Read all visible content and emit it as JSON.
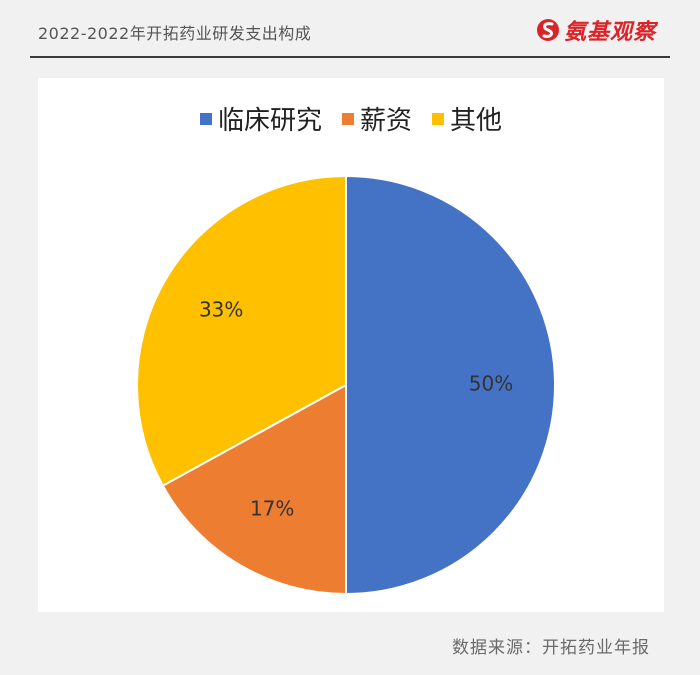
{
  "header": {
    "title": "2022-2022年开拓药业研发支出构成",
    "brand": "氨基观察"
  },
  "source": "数据来源：开拓药业年报",
  "colors": {
    "clinical": "#4472c4",
    "salary": "#ed7d31",
    "other": "#ffc000",
    "brand_red": "#d9252a"
  },
  "chart_data": {
    "type": "pie",
    "title": "",
    "categories": [
      "临床研究",
      "薪资",
      "其他"
    ],
    "values": [
      50,
      17,
      33
    ],
    "data_labels": [
      "50%",
      "17%",
      "33%"
    ],
    "legend": "top",
    "start_angle": "12 o'clock, clockwise"
  }
}
